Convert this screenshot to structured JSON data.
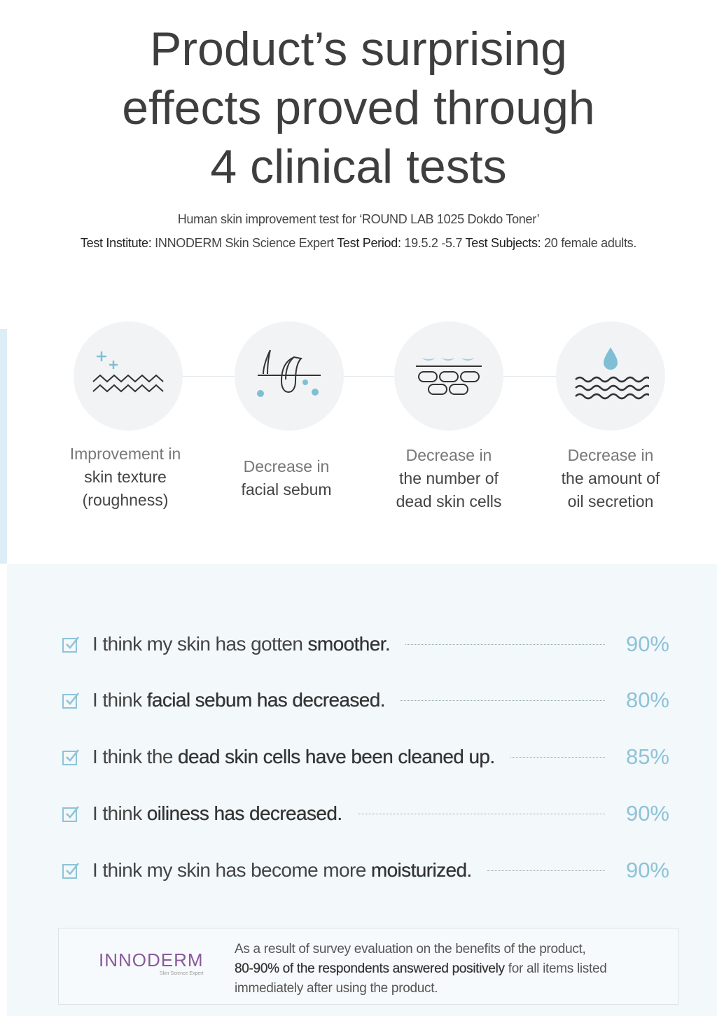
{
  "title": [
    "Product’s surprising",
    "effects proved through",
    "4 clinical tests"
  ],
  "subtitle1": "Human skin improvement test for ‘ROUND LAB 1025 Dokdo Toner’",
  "subtitle2": {
    "k1": "Test Institute:",
    "v1": " INNODERM Skin Science Expert ",
    "k2": "Test Period:",
    "v2": " 19.5.2 -5.7 ",
    "k3": "Test Subjects:",
    "v3": " 20 female adults."
  },
  "effects": [
    {
      "icon": "skin-texture-icon",
      "l1": "Improvement in",
      "l2": "skin texture",
      "l3": "(roughness)"
    },
    {
      "icon": "hair-follicle-sebum-icon",
      "l1": "Decrease in",
      "l2": "facial sebum"
    },
    {
      "icon": "dead-skin-cells-icon",
      "l1": "Decrease in",
      "l2": "the number of",
      "l3": "dead skin cells"
    },
    {
      "icon": "oil-drop-icon",
      "l1": "Decrease in",
      "l2": "the amount of",
      "l3": "oil secretion"
    }
  ],
  "survey": [
    {
      "pre": "I think my skin has gotten ",
      "bold": "smoother.",
      "post": "",
      "pct": "90%"
    },
    {
      "pre": "I think ",
      "bold": "facial sebum has decreased.",
      "post": "",
      "pct": "80%"
    },
    {
      "pre": "I think the ",
      "bold": "dead skin cells have been cleaned up.",
      "post": "",
      "pct": "85%"
    },
    {
      "pre": "I think ",
      "bold": "oiliness has decreased.",
      "post": "",
      "pct": "90%"
    },
    {
      "pre": "I think my skin has become more ",
      "bold": "moisturized.",
      "post": "",
      "pct": "90%"
    }
  ],
  "footer": {
    "logo": "INNODERM",
    "logo_sub": "Skin Science Expert",
    "t1": "As a result of survey evaluation on the benefits of the product,",
    "t2b": "80-90% of the respondents answered positively",
    "t2": " for all items listed",
    "t3": "immediately after using the product."
  },
  "colors": {
    "accent": "#8ec3d8",
    "text": "#444444",
    "lower_bg": "#f3f8fb"
  }
}
